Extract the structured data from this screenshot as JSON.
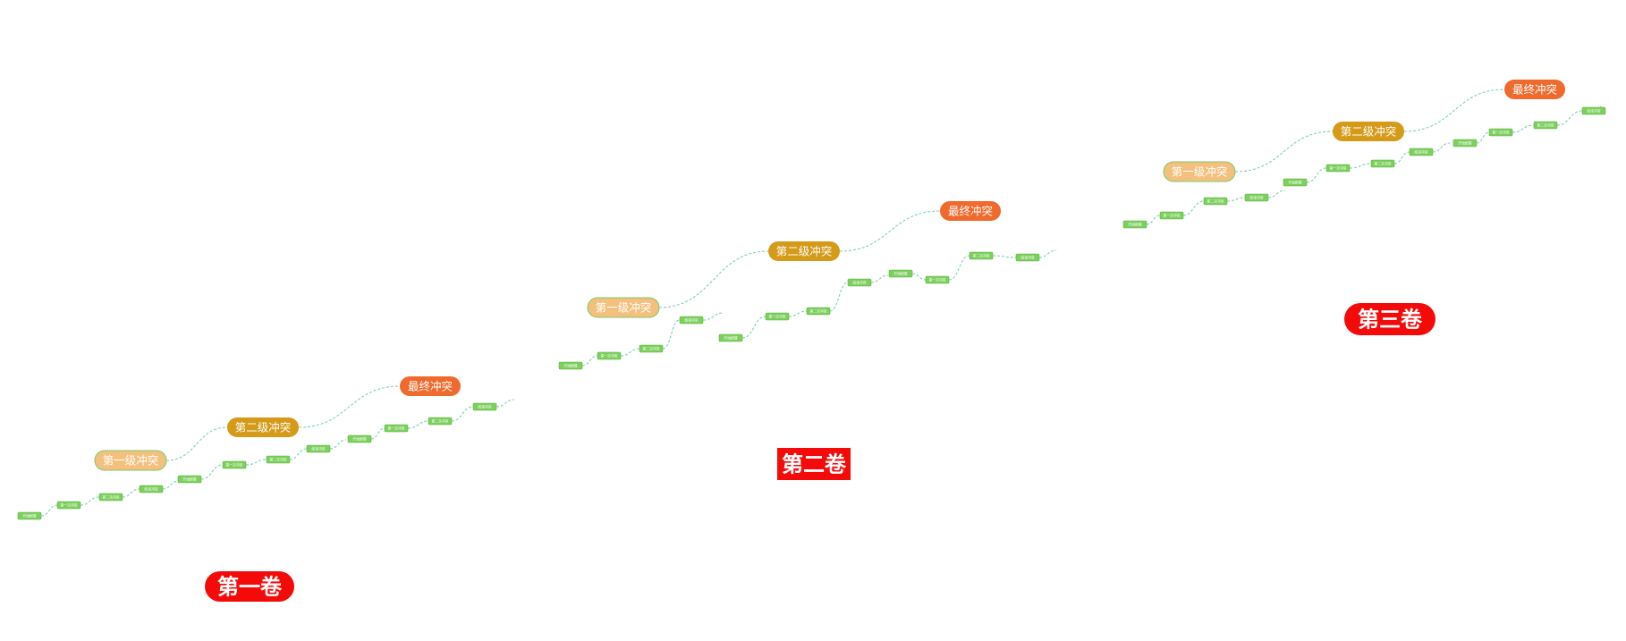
{
  "colors": {
    "volume_label_bg": "#f50a0a",
    "volume_label_text": "#ffffff",
    "level1_bg": "#f3c07e",
    "level1_border": "#7fc96a",
    "level2_bg": "#d49a18",
    "final_bg": "#ef6a2c",
    "node_text": "#ffffff",
    "sub_node_bg": "#7dcf5e",
    "sub_node_border": "#5fb640",
    "connector": "#7fcfb8"
  },
  "volumes": [
    {
      "label": "第一卷",
      "label_shape": "pill",
      "conflicts": [
        {
          "label": "第一级冲突",
          "level": "level1"
        },
        {
          "label": "第二级冲突",
          "level": "level2"
        },
        {
          "label": "最终冲突",
          "level": "final"
        }
      ],
      "sub_chains": [
        [
          "开始剧情",
          "第一次冲突",
          "第二次冲突",
          "结束冲突"
        ],
        [
          "开始剧情",
          "第一次冲突",
          "第二次冲突",
          "结束冲突"
        ],
        [
          "开始剧情",
          "第一次冲突",
          "第二次冲突",
          "结束冲突"
        ]
      ]
    },
    {
      "label": "第二卷",
      "label_shape": "rect",
      "conflicts": [
        {
          "label": "第一级冲突",
          "level": "level1"
        },
        {
          "label": "第二级冲突",
          "level": "level2"
        },
        {
          "label": "最终冲突",
          "level": "final"
        }
      ],
      "sub_chains": [
        [
          "开始剧情",
          "第一次冲突",
          "第二次冲突",
          "结束冲突"
        ],
        [
          "开始剧情",
          "第一次冲突",
          "第二次冲突",
          "结束冲突"
        ],
        [
          "开始剧情",
          "第一次冲突",
          "第二次冲突",
          "结束冲突"
        ]
      ]
    },
    {
      "label": "第三卷",
      "label_shape": "pill",
      "conflicts": [
        {
          "label": "第一级冲突",
          "level": "level1"
        },
        {
          "label": "第二级冲突",
          "level": "level2"
        },
        {
          "label": "最终冲突",
          "level": "final"
        }
      ],
      "sub_chains": [
        [
          "开始剧情",
          "第一次冲突",
          "第二次冲突",
          "结束冲突"
        ],
        [
          "开始剧情",
          "第一次冲突",
          "第二次冲突",
          "结束冲突"
        ],
        [
          "开始剧情",
          "第一次冲突",
          "第二次冲突",
          "结束冲突"
        ]
      ]
    }
  ]
}
